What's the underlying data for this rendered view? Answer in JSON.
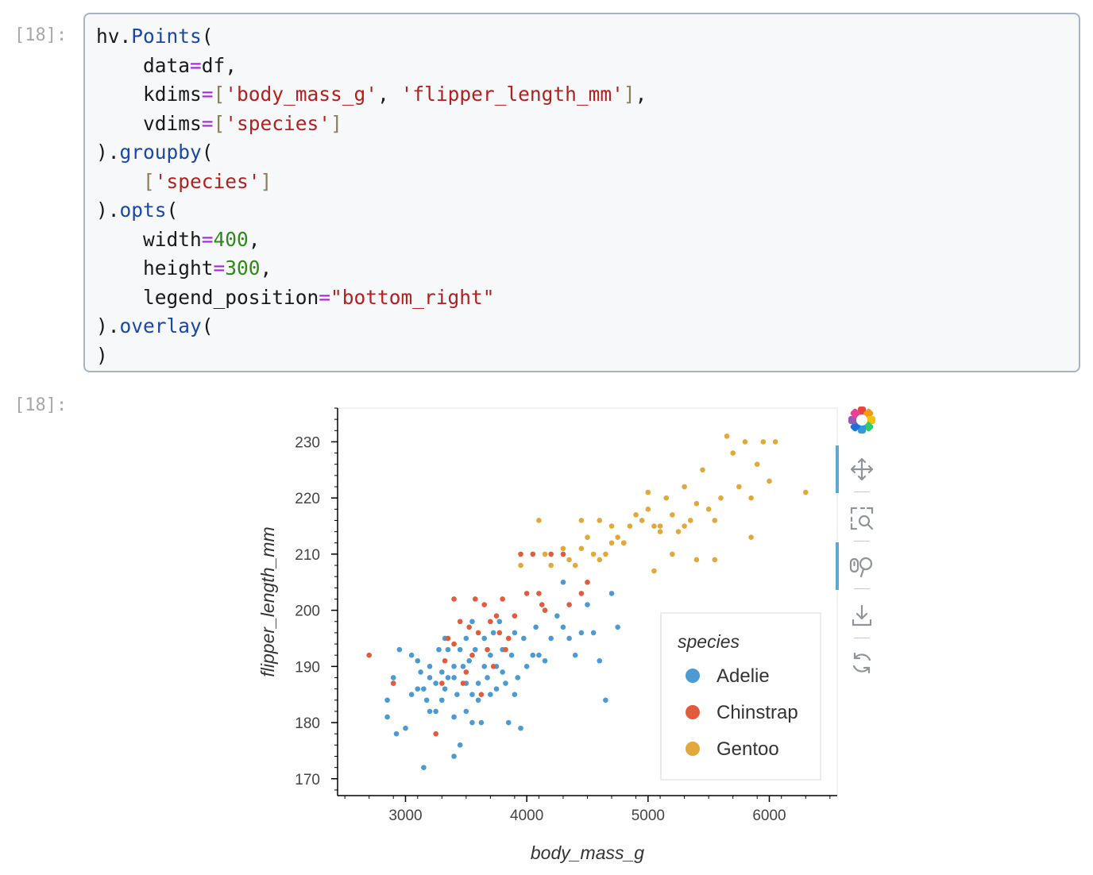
{
  "cell": {
    "input_prompt": "[18]:",
    "output_prompt": "[18]:",
    "code_lines": [
      [
        {
          "t": "hv."
        },
        {
          "t": "Points",
          "c": "fn"
        },
        {
          "t": "("
        }
      ],
      [
        {
          "t": "    data"
        },
        {
          "t": "=",
          "c": "op"
        },
        {
          "t": "df,"
        }
      ],
      [
        {
          "t": "    kdims"
        },
        {
          "t": "=",
          "c": "op"
        },
        {
          "t": "[",
          "c": "br"
        },
        {
          "t": "'body_mass_g'",
          "c": "str"
        },
        {
          "t": ", "
        },
        {
          "t": "'flipper_length_mm'",
          "c": "str"
        },
        {
          "t": "]",
          "c": "br"
        },
        {
          "t": ","
        }
      ],
      [
        {
          "t": "    vdims"
        },
        {
          "t": "=",
          "c": "op"
        },
        {
          "t": "[",
          "c": "br"
        },
        {
          "t": "'species'",
          "c": "str"
        },
        {
          "t": "]",
          "c": "br"
        }
      ],
      [
        {
          "t": ")."
        },
        {
          "t": "groupby",
          "c": "fn"
        },
        {
          "t": "("
        }
      ],
      [
        {
          "t": "    "
        },
        {
          "t": "[",
          "c": "br"
        },
        {
          "t": "'species'",
          "c": "str"
        },
        {
          "t": "]",
          "c": "br"
        }
      ],
      [
        {
          "t": ")."
        },
        {
          "t": "opts",
          "c": "fn"
        },
        {
          "t": "("
        }
      ],
      [
        {
          "t": "    width"
        },
        {
          "t": "=",
          "c": "op"
        },
        {
          "t": "400",
          "c": "num"
        },
        {
          "t": ","
        }
      ],
      [
        {
          "t": "    height"
        },
        {
          "t": "=",
          "c": "op"
        },
        {
          "t": "300",
          "c": "num"
        },
        {
          "t": ","
        }
      ],
      [
        {
          "t": "    legend_position"
        },
        {
          "t": "=",
          "c": "op"
        },
        {
          "t": "\"bottom_right\"",
          "c": "str"
        }
      ],
      [
        {
          "t": ")."
        },
        {
          "t": "overlay",
          "c": "fn"
        },
        {
          "t": "("
        }
      ],
      [
        {
          "t": ")"
        }
      ]
    ]
  },
  "toolbar": {
    "tools": [
      {
        "name": "bokeh-logo-icon",
        "active": false
      },
      {
        "name": "pan-tool-icon",
        "active": true
      },
      {
        "name": "box-zoom-tool-icon",
        "active": false
      },
      {
        "name": "wheel-zoom-tool-icon",
        "active": true
      },
      {
        "name": "save-tool-icon",
        "active": false
      },
      {
        "name": "reset-tool-icon",
        "active": false
      }
    ]
  },
  "chart_data": {
    "type": "scatter",
    "xlabel": "body_mass_g",
    "ylabel": "flipper_length_mm",
    "xlim": [
      2440,
      6560
    ],
    "ylim": [
      167,
      236
    ],
    "x_ticks": [
      3000,
      4000,
      5000,
      6000
    ],
    "y_ticks": [
      170,
      180,
      190,
      200,
      210,
      220,
      230
    ],
    "grid": false,
    "legend": {
      "title": "species",
      "position": "bottom-right"
    },
    "series": [
      {
        "name": "Adelie",
        "color": "#4c9ad4",
        "points": [
          [
            2850,
            184
          ],
          [
            2850,
            181
          ],
          [
            2900,
            188
          ],
          [
            2900,
            187
          ],
          [
            2925,
            178
          ],
          [
            2950,
            193
          ],
          [
            3000,
            179
          ],
          [
            3050,
            185
          ],
          [
            3050,
            192
          ],
          [
            3100,
            191
          ],
          [
            3100,
            186
          ],
          [
            3125,
            189
          ],
          [
            3150,
            186
          ],
          [
            3175,
            184
          ],
          [
            3200,
            182
          ],
          [
            3150,
            172
          ],
          [
            3200,
            190
          ],
          [
            3200,
            188
          ],
          [
            3250,
            182
          ],
          [
            3250,
            187
          ],
          [
            3275,
            193
          ],
          [
            3300,
            184
          ],
          [
            3300,
            189
          ],
          [
            3325,
            186
          ],
          [
            3325,
            195
          ],
          [
            3350,
            188
          ],
          [
            3350,
            193
          ],
          [
            3400,
            181
          ],
          [
            3400,
            174
          ],
          [
            3400,
            190
          ],
          [
            3400,
            188
          ],
          [
            3425,
            185
          ],
          [
            3450,
            176
          ],
          [
            3450,
            193
          ],
          [
            3475,
            190
          ],
          [
            3500,
            187
          ],
          [
            3500,
            182
          ],
          [
            3500,
            195
          ],
          [
            3525,
            191
          ],
          [
            3550,
            185
          ],
          [
            3550,
            180
          ],
          [
            3550,
            198
          ],
          [
            3575,
            193
          ],
          [
            3600,
            187
          ],
          [
            3600,
            184
          ],
          [
            3625,
            180
          ],
          [
            3650,
            190
          ],
          [
            3650,
            195
          ],
          [
            3675,
            188
          ],
          [
            3700,
            185
          ],
          [
            3700,
            192
          ],
          [
            3725,
            196
          ],
          [
            3750,
            186
          ],
          [
            3750,
            190
          ],
          [
            3775,
            198
          ],
          [
            3800,
            193
          ],
          [
            3800,
            189
          ],
          [
            3825,
            187
          ],
          [
            3850,
            180
          ],
          [
            3875,
            192
          ],
          [
            3900,
            196
          ],
          [
            3900,
            185
          ],
          [
            3925,
            188
          ],
          [
            3950,
            179
          ],
          [
            3975,
            195
          ],
          [
            4000,
            190
          ],
          [
            4050,
            192
          ],
          [
            4075,
            197
          ],
          [
            4100,
            192
          ],
          [
            4150,
            191
          ],
          [
            4200,
            195
          ],
          [
            4250,
            199
          ],
          [
            4300,
            197
          ],
          [
            4300,
            205
          ],
          [
            4350,
            195
          ],
          [
            4400,
            192
          ],
          [
            4450,
            196
          ],
          [
            4500,
            201
          ],
          [
            4550,
            196
          ],
          [
            4600,
            191
          ],
          [
            4650,
            184
          ],
          [
            4700,
            203
          ],
          [
            4750,
            197
          ]
        ]
      },
      {
        "name": "Chinstrap",
        "color": "#e05c3c",
        "points": [
          [
            2700,
            192
          ],
          [
            2900,
            187
          ],
          [
            3250,
            178
          ],
          [
            3300,
            187
          ],
          [
            3325,
            191
          ],
          [
            3350,
            195
          ],
          [
            3400,
            202
          ],
          [
            3400,
            194
          ],
          [
            3450,
            198
          ],
          [
            3475,
            187
          ],
          [
            3500,
            189
          ],
          [
            3525,
            197
          ],
          [
            3550,
            192
          ],
          [
            3575,
            202
          ],
          [
            3600,
            196
          ],
          [
            3625,
            185
          ],
          [
            3650,
            201
          ],
          [
            3675,
            193
          ],
          [
            3700,
            198
          ],
          [
            3725,
            190
          ],
          [
            3750,
            199
          ],
          [
            3775,
            196
          ],
          [
            3800,
            202
          ],
          [
            3825,
            193
          ],
          [
            3850,
            195
          ],
          [
            3900,
            199
          ],
          [
            3950,
            210
          ],
          [
            4000,
            203
          ],
          [
            4050,
            210
          ],
          [
            4100,
            203
          ],
          [
            4125,
            201
          ],
          [
            4150,
            200
          ],
          [
            4200,
            210
          ],
          [
            4300,
            210
          ],
          [
            4350,
            201
          ],
          [
            4450,
            203
          ],
          [
            4500,
            205
          ],
          [
            4800,
            212
          ]
        ]
      },
      {
        "name": "Gentoo",
        "color": "#e0a93a",
        "points": [
          [
            3950,
            208
          ],
          [
            4100,
            216
          ],
          [
            4150,
            210
          ],
          [
            4200,
            208
          ],
          [
            4300,
            211
          ],
          [
            4350,
            209
          ],
          [
            4400,
            208
          ],
          [
            4450,
            211
          ],
          [
            4500,
            213
          ],
          [
            4550,
            210
          ],
          [
            4600,
            209
          ],
          [
            4650,
            210
          ],
          [
            4700,
            215
          ],
          [
            4750,
            213
          ],
          [
            4800,
            212
          ],
          [
            4850,
            215
          ],
          [
            4900,
            217
          ],
          [
            4950,
            216
          ],
          [
            5000,
            218
          ],
          [
            5050,
            215
          ],
          [
            5100,
            214
          ],
          [
            5150,
            220
          ],
          [
            5200,
            217
          ],
          [
            5250,
            214
          ],
          [
            5300,
            222
          ],
          [
            5350,
            216
          ],
          [
            5400,
            219
          ],
          [
            5450,
            225
          ],
          [
            5500,
            218
          ],
          [
            5550,
            216
          ],
          [
            5600,
            220
          ],
          [
            5650,
            231
          ],
          [
            5700,
            228
          ],
          [
            5750,
            222
          ],
          [
            5800,
            230
          ],
          [
            5850,
            220
          ],
          [
            5900,
            226
          ],
          [
            5950,
            230
          ],
          [
            6000,
            223
          ],
          [
            6050,
            230
          ],
          [
            6300,
            221
          ],
          [
            5200,
            210
          ],
          [
            5050,
            207
          ],
          [
            5400,
            209
          ],
          [
            4700,
            212
          ],
          [
            4600,
            216
          ],
          [
            4450,
            216
          ],
          [
            5850,
            213
          ],
          [
            5550,
            209
          ],
          [
            5000,
            221
          ],
          [
            5100,
            215
          ],
          [
            5300,
            215
          ]
        ]
      }
    ]
  }
}
